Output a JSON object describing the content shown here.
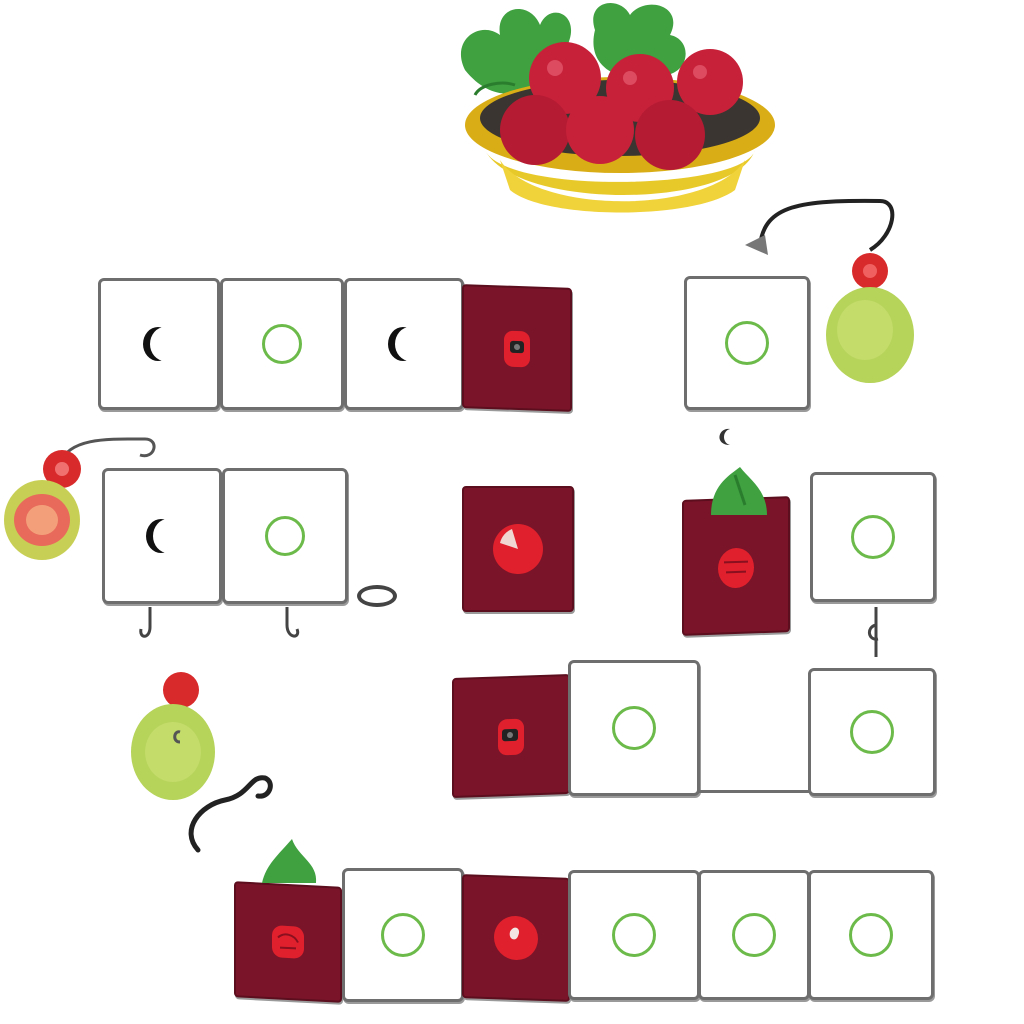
{
  "theme": {
    "card_color": "#7a1429",
    "ring_color": "#6cbb4a",
    "tile_border": "#6e6e6e",
    "moon_color": "#111111",
    "bowl_color": "#e7c21e",
    "berry_color": "#c7213a",
    "leaf_color": "#3fa140",
    "lime_color": "#b6d35a"
  },
  "board": {
    "row1": [
      "moon-icon",
      "ring-icon",
      "moon-icon",
      "card-beetle-icon"
    ],
    "row1_right": [
      "ring-icon"
    ],
    "row2": [
      "moon-icon",
      "ring-icon"
    ],
    "row2_cards": [
      "card-pie-icon",
      "card-berry-icon"
    ],
    "row2_right": [
      "ring-icon"
    ],
    "row3": [
      "card-beetle-icon",
      "ring-icon",
      "ring-icon"
    ],
    "row4": [
      "card-strawberry-icon",
      "ring-icon",
      "card-apple-icon",
      "ring-icon",
      "ring-icon",
      "ring-icon"
    ]
  },
  "decorations": [
    "berry-bowl-icon",
    "lime-charm-icon",
    "peach-charm-icon",
    "lime-fruit-icon",
    "curl-vine-icon",
    "hook-icon",
    "small-moon-icon",
    "token-ring-icon"
  ]
}
